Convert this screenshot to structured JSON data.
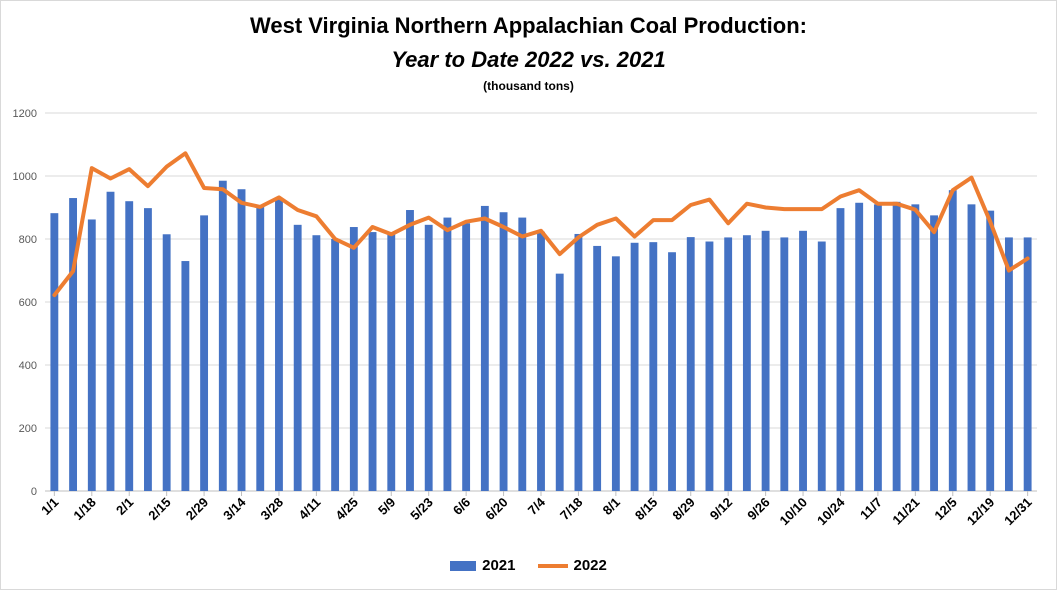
{
  "chart_data": {
    "type": "bar",
    "title": "West Virginia Northern Appalachian Coal Production:",
    "subtitle": "Year to Date 2022 vs. 2021",
    "unit_label": "(thousand tons)",
    "ylim": [
      0,
      1200
    ],
    "yticks": [
      0,
      200,
      400,
      600,
      800,
      1000,
      1200
    ],
    "grid": true,
    "legend_position": "bottom",
    "x_tick_labels": [
      "1/1",
      "1/18",
      "2/1",
      "2/15",
      "2/29",
      "3/14",
      "3/28",
      "4/11",
      "4/25",
      "5/9",
      "5/23",
      "6/6",
      "6/20",
      "7/4",
      "7/18",
      "8/1",
      "8/15",
      "8/29",
      "9/12",
      "9/26",
      "10/10",
      "10/24",
      "11/7",
      "11/21",
      "12/5",
      "12/19",
      "12/31"
    ],
    "num_points": 53,
    "series": [
      {
        "name": "2021",
        "type": "bar",
        "color": "#4472c4",
        "values": [
          882,
          930,
          862,
          950,
          920,
          898,
          815,
          730,
          875,
          985,
          958,
          905,
          930,
          845,
          812,
          800,
          838,
          822,
          815,
          892,
          845,
          868,
          850,
          905,
          885,
          868,
          823,
          690,
          816,
          778,
          745,
          788,
          790,
          758,
          806,
          792,
          805,
          812,
          826,
          805,
          826,
          792,
          898,
          915,
          910,
          918,
          910,
          875,
          955,
          910,
          890,
          805,
          805
        ]
      },
      {
        "name": "2022",
        "type": "line",
        "color": "#ed7d31",
        "values": [
          622,
          698,
          1025,
          992,
          1022,
          968,
          1030,
          1072,
          962,
          958,
          915,
          902,
          932,
          892,
          872,
          800,
          772,
          838,
          815,
          845,
          868,
          828,
          855,
          865,
          838,
          808,
          826,
          752,
          805,
          845,
          865,
          808,
          860,
          860,
          908,
          925,
          850,
          912,
          900,
          895,
          895,
          895,
          935,
          955,
          912,
          912,
          893,
          822,
          955,
          995,
          855,
          700,
          738
        ]
      }
    ]
  }
}
